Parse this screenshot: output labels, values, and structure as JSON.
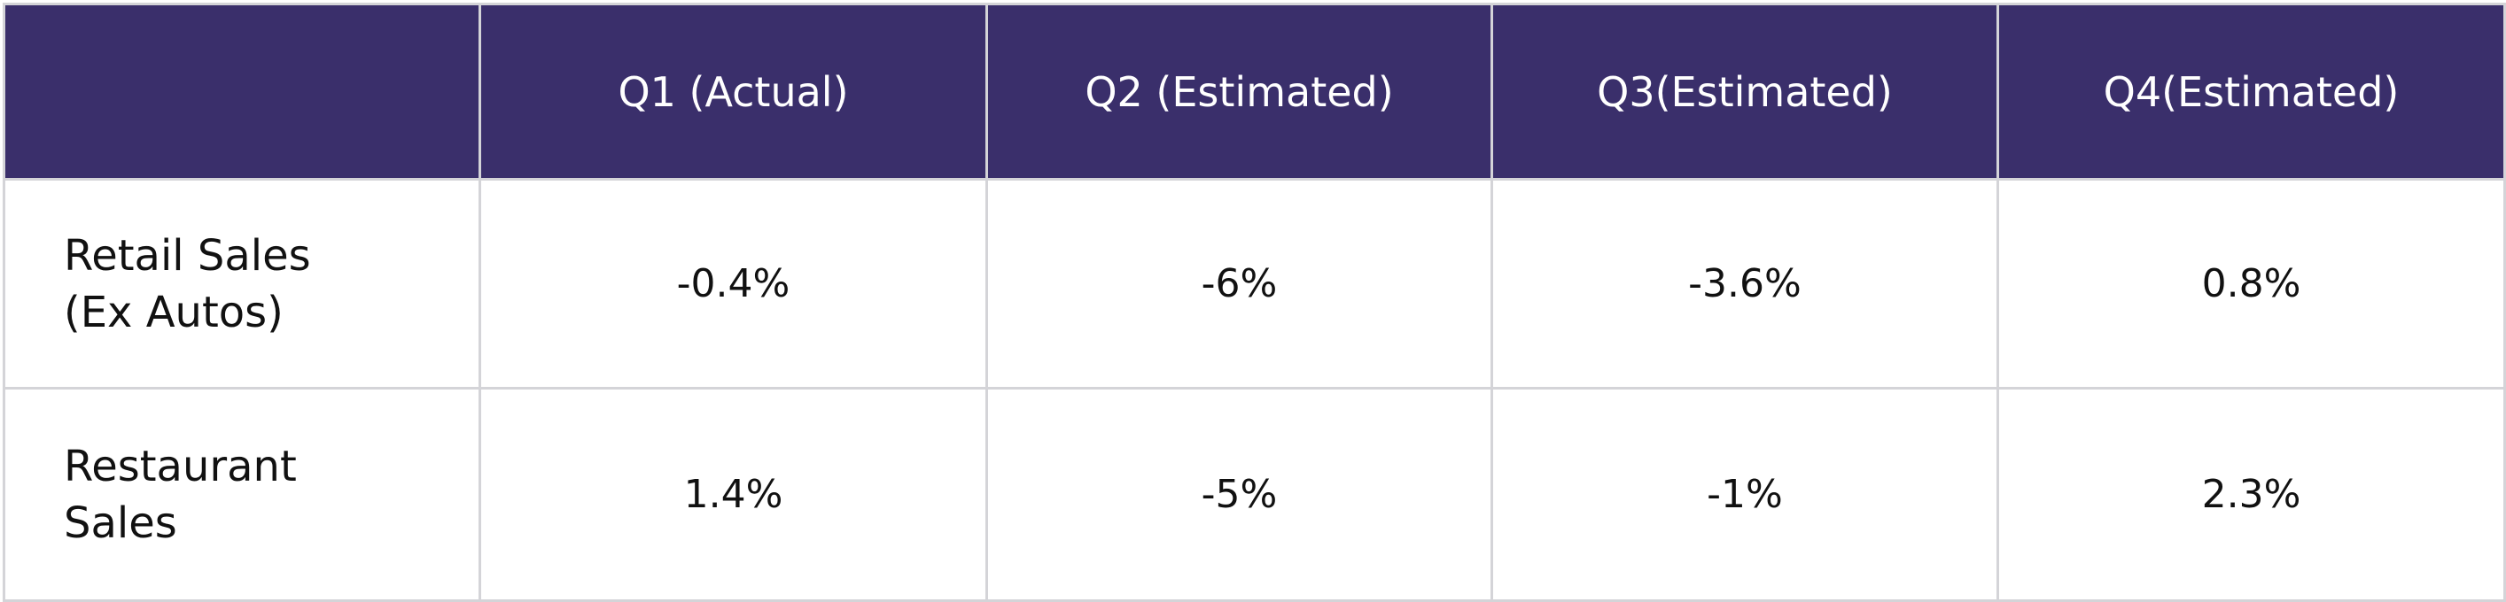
{
  "table": {
    "columns": [
      "Q1 (Actual)",
      "Q2 (Estimated)",
      "Q3(Estimated)",
      "Q4(Estimated)"
    ],
    "rows": [
      {
        "label": "Retail Sales\n(Ex Autos)",
        "values": [
          "-0.4%",
          "-6%",
          "-3.6%",
          "0.8%"
        ]
      },
      {
        "label": "Restaurant\nSales",
        "values": [
          "1.4%",
          "-5%",
          "-1%",
          "2.3%"
        ]
      }
    ]
  }
}
